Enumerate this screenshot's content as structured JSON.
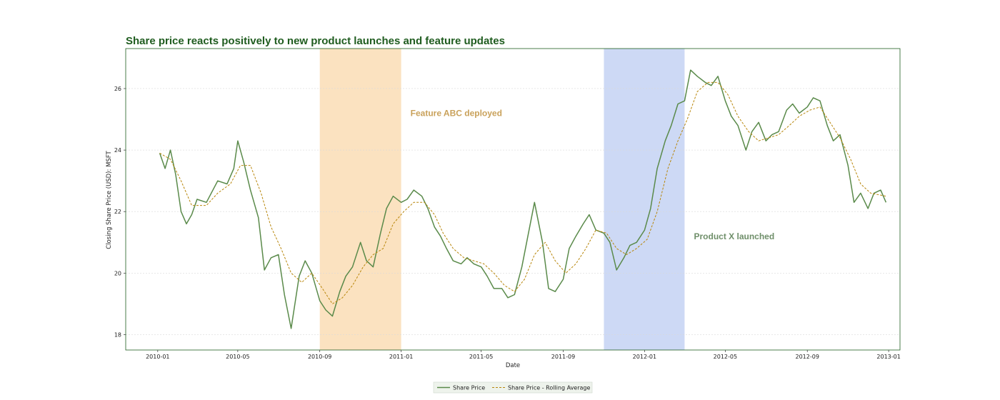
{
  "chart_data": {
    "type": "line",
    "title": "Share price reacts positively to new product launches and feature updates",
    "xlabel": "Date",
    "ylabel": "Closing Share Price (USD): MSFT",
    "x_ticks": [
      "2010-01",
      "2010-05",
      "2010-09",
      "2011-01",
      "2011-05",
      "2011-09",
      "2012-01",
      "2012-05",
      "2012-09",
      "2013-01"
    ],
    "y_ticks": [
      "18",
      "20",
      "22",
      "24",
      "26"
    ],
    "xlim": [
      "2009-11-14",
      "2013-01-18"
    ],
    "ylim": [
      17.5,
      27.3
    ],
    "grid": "horizontal dotted",
    "legend_placement": "bottom-center",
    "colors": {
      "title": "#1f5c1f",
      "share_price": "#5a8a4a",
      "rolling_average": "#b8860b",
      "band_feature": "#fbe2c0",
      "band_product": "#cdd9f5",
      "annotation_feature": "#c9a15a",
      "annotation_product": "#6f8f6a",
      "axes": "#1f5c1f"
    },
    "shaded_regions": [
      {
        "start": "2010-09-01",
        "end": "2011-01-01",
        "label": "Feature ABC deployed",
        "color": "#fbe2c0"
      },
      {
        "start": "2011-11-01",
        "end": "2012-03-01",
        "label": "Product X launched",
        "color": "#cdd9f5"
      }
    ],
    "annotations": [
      {
        "text": "Feature ABC deployed",
        "x": "2011-01-15",
        "y": 25.1
      },
      {
        "text": "Product X launched",
        "x": "2012-03-15",
        "y": 21.1
      }
    ],
    "series": [
      {
        "name": "Share Price",
        "style": "solid",
        "x": [
          "2010-01-04",
          "2010-01-12",
          "2010-01-20",
          "2010-01-28",
          "2010-02-05",
          "2010-02-13",
          "2010-02-21",
          "2010-03-01",
          "2010-03-15",
          "2010-04-01",
          "2010-04-15",
          "2010-04-25",
          "2010-05-01",
          "2010-05-10",
          "2010-05-20",
          "2010-06-01",
          "2010-06-10",
          "2010-06-20",
          "2010-07-01",
          "2010-07-10",
          "2010-07-20",
          "2010-08-01",
          "2010-08-10",
          "2010-08-20",
          "2010-09-01",
          "2010-09-10",
          "2010-09-20",
          "2010-10-01",
          "2010-10-10",
          "2010-10-20",
          "2010-11-01",
          "2010-11-10",
          "2010-11-20",
          "2010-12-01",
          "2010-12-10",
          "2010-12-20",
          "2011-01-01",
          "2011-01-10",
          "2011-01-20",
          "2011-02-01",
          "2011-02-10",
          "2011-02-20",
          "2011-03-01",
          "2011-03-10",
          "2011-03-20",
          "2011-04-01",
          "2011-04-10",
          "2011-04-20",
          "2011-05-01",
          "2011-05-10",
          "2011-05-20",
          "2011-06-01",
          "2011-06-10",
          "2011-06-20",
          "2011-07-01",
          "2011-07-10",
          "2011-07-20",
          "2011-08-01",
          "2011-08-10",
          "2011-08-20",
          "2011-09-01",
          "2011-09-10",
          "2011-09-20",
          "2011-10-01",
          "2011-10-10",
          "2011-10-20",
          "2011-11-01",
          "2011-11-10",
          "2011-11-20",
          "2011-12-01",
          "2011-12-10",
          "2011-12-20",
          "2012-01-01",
          "2012-01-10",
          "2012-01-20",
          "2012-02-01",
          "2012-02-10",
          "2012-02-20",
          "2012-03-01",
          "2012-03-10",
          "2012-03-20",
          "2012-04-01",
          "2012-04-10",
          "2012-04-20",
          "2012-05-01",
          "2012-05-10",
          "2012-05-20",
          "2012-06-01",
          "2012-06-10",
          "2012-06-20",
          "2012-07-01",
          "2012-07-10",
          "2012-07-20",
          "2012-08-01",
          "2012-08-10",
          "2012-08-20",
          "2012-09-01",
          "2012-09-10",
          "2012-09-20",
          "2012-10-01",
          "2012-10-10",
          "2012-10-20",
          "2012-11-01",
          "2012-11-10",
          "2012-11-20",
          "2012-12-01",
          "2012-12-10",
          "2012-12-20",
          "2012-12-28"
        ],
        "values": [
          23.9,
          23.4,
          24.0,
          23.2,
          22.0,
          21.6,
          21.9,
          22.4,
          22.3,
          23.0,
          22.9,
          23.4,
          24.3,
          23.6,
          22.7,
          21.8,
          20.1,
          20.5,
          20.6,
          19.3,
          18.2,
          19.9,
          20.4,
          20.0,
          19.1,
          18.8,
          18.6,
          19.4,
          19.9,
          20.2,
          21.0,
          20.4,
          20.2,
          21.3,
          22.1,
          22.5,
          22.3,
          22.4,
          22.7,
          22.5,
          22.1,
          21.5,
          21.2,
          20.8,
          20.4,
          20.3,
          20.5,
          20.3,
          20.2,
          19.9,
          19.5,
          19.5,
          19.2,
          19.3,
          20.2,
          21.2,
          22.3,
          21.0,
          19.5,
          19.4,
          19.8,
          20.8,
          21.2,
          21.6,
          21.9,
          21.4,
          21.3,
          21.0,
          20.1,
          20.5,
          20.9,
          21.0,
          21.4,
          22.1,
          23.4,
          24.3,
          24.8,
          25.5,
          25.6,
          26.6,
          26.4,
          26.2,
          26.1,
          26.4,
          25.6,
          25.1,
          24.8,
          24.0,
          24.6,
          24.9,
          24.3,
          24.5,
          24.6,
          25.3,
          25.5,
          25.2,
          25.4,
          25.7,
          25.6,
          24.8,
          24.3,
          24.5,
          23.5,
          22.3,
          22.6,
          22.1,
          22.6,
          22.7,
          22.3
        ],
        "color": "#5a8a4a"
      },
      {
        "name": "Share Price - Rolling Average",
        "style": "dashed",
        "x": [
          "2010-01-04",
          "2010-01-20",
          "2010-02-05",
          "2010-02-21",
          "2010-03-15",
          "2010-04-01",
          "2010-04-20",
          "2010-05-05",
          "2010-05-20",
          "2010-06-05",
          "2010-06-20",
          "2010-07-05",
          "2010-07-20",
          "2010-08-05",
          "2010-08-20",
          "2010-09-05",
          "2010-09-20",
          "2010-10-05",
          "2010-10-20",
          "2010-11-05",
          "2010-11-20",
          "2010-12-05",
          "2010-12-20",
          "2011-01-05",
          "2011-01-20",
          "2011-02-05",
          "2011-02-20",
          "2011-03-05",
          "2011-03-20",
          "2011-04-05",
          "2011-04-20",
          "2011-05-05",
          "2011-05-20",
          "2011-06-05",
          "2011-06-20",
          "2011-07-05",
          "2011-07-20",
          "2011-08-05",
          "2011-08-20",
          "2011-09-05",
          "2011-09-20",
          "2011-10-05",
          "2011-10-20",
          "2011-11-05",
          "2011-11-20",
          "2011-12-05",
          "2011-12-20",
          "2012-01-05",
          "2012-01-20",
          "2012-02-05",
          "2012-02-20",
          "2012-03-05",
          "2012-03-20",
          "2012-04-05",
          "2012-04-20",
          "2012-05-05",
          "2012-05-20",
          "2012-06-05",
          "2012-06-20",
          "2012-07-05",
          "2012-07-20",
          "2012-08-05",
          "2012-08-20",
          "2012-09-05",
          "2012-09-20",
          "2012-10-05",
          "2012-10-20",
          "2012-11-05",
          "2012-11-20",
          "2012-12-05",
          "2012-12-28"
        ],
        "values": [
          23.9,
          23.7,
          23.0,
          22.2,
          22.2,
          22.6,
          22.9,
          23.5,
          23.5,
          22.6,
          21.5,
          20.8,
          20.0,
          19.7,
          20.0,
          19.5,
          19.0,
          19.2,
          19.6,
          20.2,
          20.6,
          20.8,
          21.6,
          22.0,
          22.3,
          22.3,
          21.9,
          21.3,
          20.8,
          20.5,
          20.4,
          20.3,
          20.0,
          19.6,
          19.4,
          19.8,
          20.6,
          21.0,
          20.4,
          20.0,
          20.3,
          20.8,
          21.4,
          21.3,
          20.8,
          20.6,
          20.8,
          21.1,
          22.0,
          23.4,
          24.3,
          25.0,
          25.9,
          26.2,
          26.2,
          25.8,
          25.1,
          24.6,
          24.3,
          24.4,
          24.5,
          24.8,
          25.1,
          25.3,
          25.4,
          24.9,
          24.4,
          23.7,
          22.9,
          22.6,
          22.5
        ],
        "color": "#b8860b"
      }
    ]
  }
}
